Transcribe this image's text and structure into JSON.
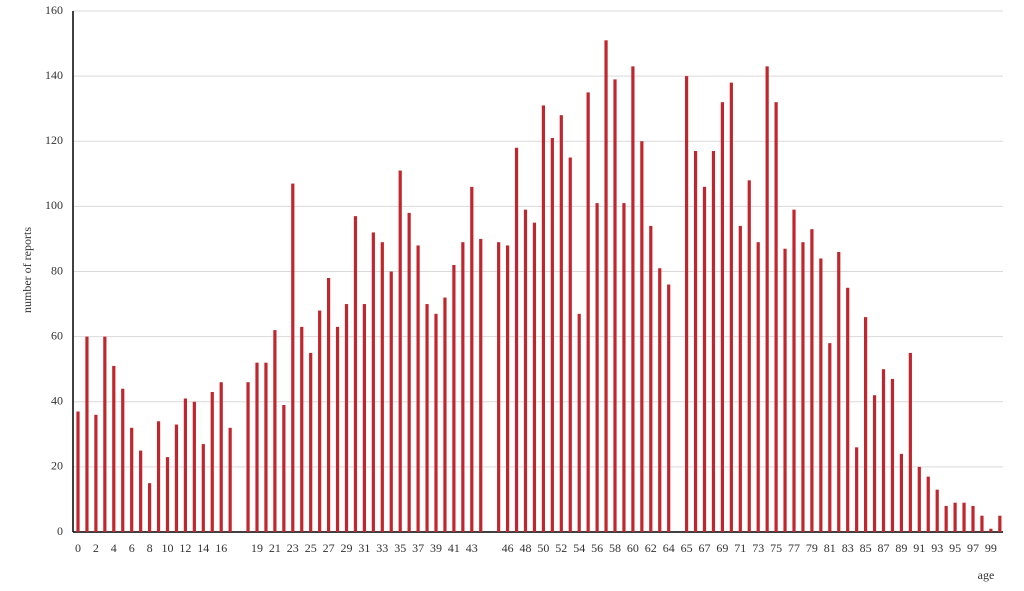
{
  "chart_data": {
    "type": "bar",
    "x_label": "age",
    "y_label": "number of reports",
    "categories": [
      "0",
      null,
      "2",
      null,
      "4",
      null,
      "6",
      null,
      "8",
      null,
      "10",
      null,
      "12",
      null,
      "14",
      null,
      "16",
      null,
      null,
      null,
      "19",
      null,
      "21",
      null,
      "23",
      null,
      "25",
      null,
      "27",
      null,
      "29",
      null,
      "31",
      null,
      "33",
      null,
      "35",
      null,
      "37",
      null,
      "39",
      null,
      "41",
      null,
      "43",
      null,
      null,
      null,
      "46",
      null,
      "48",
      null,
      "50",
      null,
      "52",
      null,
      "54",
      null,
      "56",
      null,
      "58",
      null,
      "60",
      null,
      "62",
      null,
      "64",
      null,
      "65",
      null,
      "67",
      null,
      "69",
      null,
      "71",
      null,
      "73",
      null,
      "75",
      null,
      "77",
      null,
      "79",
      null,
      "81",
      null,
      "83",
      null,
      "85",
      null,
      "87",
      null,
      "89",
      null,
      "91",
      null,
      "93",
      null,
      "95",
      null,
      "97",
      null,
      "99",
      null
    ],
    "values": [
      37,
      60,
      36,
      60,
      51,
      44,
      32,
      25,
      15,
      34,
      23,
      33,
      41,
      40,
      27,
      43,
      46,
      32,
      null,
      46,
      52,
      52,
      62,
      39,
      107,
      63,
      55,
      68,
      78,
      63,
      70,
      97,
      70,
      92,
      89,
      80,
      111,
      98,
      88,
      70,
      67,
      72,
      82,
      89,
      106,
      90,
      null,
      89,
      88,
      118,
      99,
      95,
      131,
      121,
      128,
      115,
      67,
      135,
      101,
      151,
      139,
      101,
      143,
      120,
      94,
      81,
      76,
      null,
      140,
      117,
      106,
      117,
      132,
      138,
      94,
      108,
      89,
      143,
      132,
      87,
      99,
      89,
      93,
      84,
      58,
      86,
      75,
      26,
      66,
      42,
      50,
      47,
      24,
      55,
      20,
      17,
      13,
      8,
      9,
      9,
      8,
      5,
      1,
      5
    ],
    "color": "#c0262d",
    "ylim": [
      0,
      160
    ],
    "yticks": [
      0,
      20,
      40,
      60,
      80,
      100,
      120,
      140,
      160
    ],
    "grid": true
  }
}
